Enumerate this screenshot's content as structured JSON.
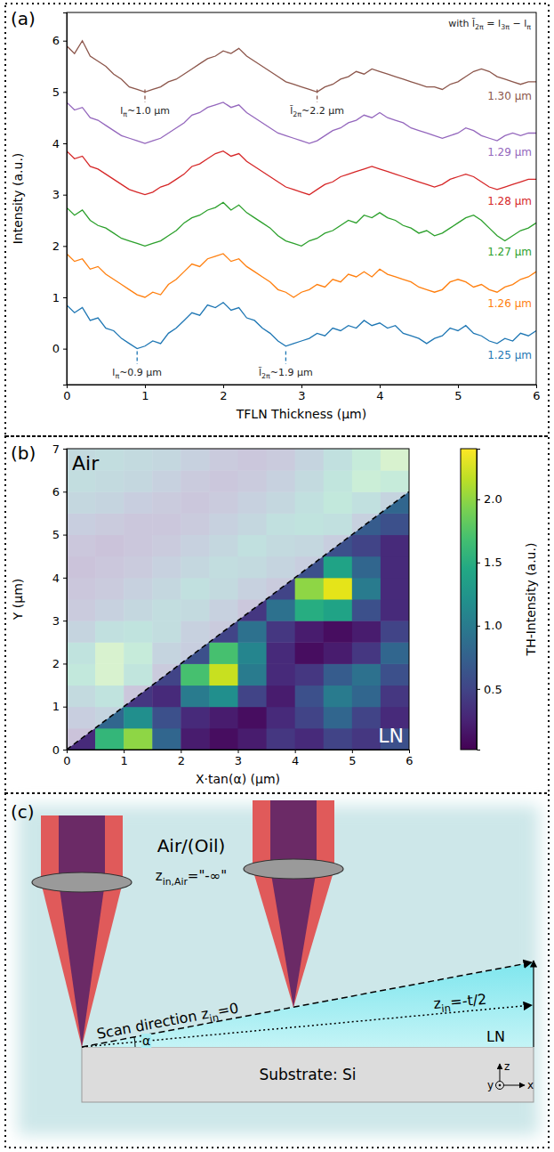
{
  "chart_data": [
    {
      "type": "line",
      "panel_label": "(a)",
      "x": [
        0,
        0.1,
        0.2,
        0.3,
        0.4,
        0.5,
        0.6,
        0.7,
        0.8,
        0.9,
        1,
        1.1,
        1.2,
        1.3,
        1.4,
        1.5,
        1.6,
        1.7,
        1.8,
        1.9,
        2,
        2.1,
        2.2,
        2.3,
        2.4,
        2.5,
        2.6,
        2.7,
        2.8,
        2.9,
        3,
        3.1,
        3.2,
        3.3,
        3.4,
        3.5,
        3.6,
        3.7,
        3.8,
        3.9,
        4,
        4.1,
        4.2,
        4.3,
        4.4,
        4.5,
        4.6,
        4.7,
        4.8,
        4.9,
        5,
        5.1,
        5.2,
        5.3,
        5.4,
        5.5,
        5.6,
        5.7,
        5.8,
        5.9,
        6
      ],
      "series": [
        {
          "name": "1.25 µm",
          "color": "#1f77b4",
          "values": [
            0.85,
            0.7,
            0.8,
            0.55,
            0.6,
            0.4,
            0.35,
            0.2,
            0.1,
            0,
            0.05,
            0.15,
            0.1,
            0.3,
            0.4,
            0.55,
            0.7,
            0.65,
            0.85,
            0.8,
            0.9,
            0.75,
            0.8,
            0.6,
            0.55,
            0.4,
            0.3,
            0.15,
            0.05,
            0.1,
            0.15,
            0.2,
            0.3,
            0.25,
            0.4,
            0.35,
            0.45,
            0.4,
            0.55,
            0.45,
            0.5,
            0.4,
            0.45,
            0.3,
            0.25,
            0.2,
            0.1,
            0.2,
            0.25,
            0.4,
            0.35,
            0.45,
            0.3,
            0.25,
            0.15,
            0.1,
            0.2,
            0.15,
            0.3,
            0.25,
            0.35
          ]
        },
        {
          "name": "1.26 µm",
          "color": "#ff7f0e",
          "values": [
            1.85,
            1.7,
            1.75,
            1.55,
            1.6,
            1.45,
            1.35,
            1.25,
            1.15,
            1.05,
            1,
            1.1,
            1.05,
            1.25,
            1.35,
            1.5,
            1.65,
            1.6,
            1.75,
            1.8,
            1.85,
            1.7,
            1.75,
            1.6,
            1.5,
            1.4,
            1.3,
            1.15,
            1.1,
            1,
            1.1,
            1.15,
            1.25,
            1.2,
            1.35,
            1.3,
            1.45,
            1.4,
            1.5,
            1.4,
            1.55,
            1.45,
            1.4,
            1.35,
            1.3,
            1.2,
            1.15,
            1.1,
            1.15,
            1.3,
            1.35,
            1.3,
            1.2,
            1.25,
            1.15,
            1.1,
            1.2,
            1.25,
            1.35,
            1.4,
            1.5
          ]
        },
        {
          "name": "1.27 µm",
          "color": "#2ca02c",
          "values": [
            2.75,
            2.6,
            2.7,
            2.5,
            2.4,
            2.35,
            2.25,
            2.15,
            2.1,
            2.05,
            2,
            2.05,
            2.1,
            2.2,
            2.3,
            2.45,
            2.55,
            2.6,
            2.7,
            2.75,
            2.85,
            2.7,
            2.8,
            2.65,
            2.55,
            2.45,
            2.35,
            2.2,
            2.1,
            2.05,
            2,
            2.1,
            2.15,
            2.25,
            2.3,
            2.4,
            2.5,
            2.45,
            2.6,
            2.55,
            2.65,
            2.55,
            2.5,
            2.4,
            2.35,
            2.25,
            2.3,
            2.2,
            2.25,
            2.35,
            2.45,
            2.55,
            2.6,
            2.5,
            2.35,
            2.2,
            2.1,
            2.2,
            2.3,
            2.35,
            2.45
          ]
        },
        {
          "name": "1.28 µm",
          "color": "#d62728",
          "values": [
            3.85,
            3.7,
            3.75,
            3.55,
            3.5,
            3.4,
            3.3,
            3.2,
            3.1,
            3.05,
            3,
            3.05,
            3.15,
            3.2,
            3.3,
            3.4,
            3.55,
            3.6,
            3.7,
            3.8,
            3.85,
            3.75,
            3.8,
            3.65,
            3.55,
            3.45,
            3.35,
            3.25,
            3.15,
            3.1,
            3.05,
            3,
            3.1,
            3.2,
            3.25,
            3.35,
            3.4,
            3.45,
            3.5,
            3.55,
            3.5,
            3.45,
            3.4,
            3.35,
            3.3,
            3.25,
            3.2,
            3.15,
            3.2,
            3.3,
            3.35,
            3.4,
            3.35,
            3.25,
            3.15,
            3.1,
            3.15,
            3.2,
            3.25,
            3.3,
            3.3
          ]
        },
        {
          "name": "1.29 µm",
          "color": "#9467bd",
          "values": [
            4.8,
            4.65,
            4.7,
            4.5,
            4.45,
            4.35,
            4.25,
            4.15,
            4.1,
            4.05,
            4,
            4.05,
            4.1,
            4.2,
            4.3,
            4.4,
            4.55,
            4.6,
            4.7,
            4.75,
            4.8,
            4.7,
            4.75,
            4.6,
            4.5,
            4.4,
            4.3,
            4.2,
            4.15,
            4.1,
            4.05,
            4,
            4.05,
            4.15,
            4.25,
            4.3,
            4.4,
            4.45,
            4.55,
            4.5,
            4.6,
            4.5,
            4.45,
            4.4,
            4.3,
            4.25,
            4.2,
            4.15,
            4.1,
            4.15,
            4.2,
            4.3,
            4.25,
            4.15,
            4.1,
            4.05,
            4.15,
            4.2,
            4.15,
            4.2,
            4.2
          ]
        },
        {
          "name": "1.30 µm",
          "color": "#8c564b",
          "values": [
            5.9,
            5.75,
            6,
            5.7,
            5.6,
            5.5,
            5.35,
            5.25,
            5.1,
            5.05,
            5,
            5.05,
            5.1,
            5.2,
            5.25,
            5.35,
            5.45,
            5.55,
            5.65,
            5.7,
            5.8,
            5.75,
            5.85,
            5.7,
            5.6,
            5.5,
            5.4,
            5.3,
            5.2,
            5.15,
            5.1,
            5.05,
            5,
            5.1,
            5.15,
            5.25,
            5.3,
            5.4,
            5.35,
            5.45,
            5.4,
            5.35,
            5.3,
            5.25,
            5.2,
            5.15,
            5.1,
            5.1,
            5.05,
            5.15,
            5.2,
            5.3,
            5.4,
            5.45,
            5.4,
            5.3,
            5.25,
            5.2,
            5.15,
            5.2,
            5.2
          ]
        }
      ],
      "xlim": [
        0,
        6
      ],
      "ylim": [
        -0.7,
        6.55
      ],
      "xticks": [
        0,
        1,
        2,
        3,
        4,
        5,
        6
      ],
      "yticks": [
        0,
        1,
        2,
        3,
        4,
        5,
        6
      ],
      "x_label": "TFLN Thickness (µm)",
      "y_label": "Intensity (a.u.)",
      "annotations": [
        {
          "x": 1.0,
          "y": [
            5.05,
            4.8
          ],
          "color": "#8c564b",
          "parts": [
            {
              "text": "l",
              "sub": "π"
            },
            {
              "text": "~1.0 µm"
            }
          ]
        },
        {
          "x": 3.2,
          "y": [
            5.05,
            4.8
          ],
          "color": "#8c564b",
          "parts": [
            {
              "text": "l̃",
              "sub": "2π"
            },
            {
              "text": "~2.2 µm"
            }
          ]
        },
        {
          "x": 0.9,
          "y": [
            -0.05,
            -0.3
          ],
          "color": "#1f77b4",
          "parts": [
            {
              "text": "l",
              "sub": "π"
            },
            {
              "text": "~0.9 µm"
            }
          ]
        },
        {
          "x": 2.8,
          "y": [
            -0.05,
            -0.3
          ],
          "color": "#1f77b4",
          "parts": [
            {
              "text": "l̃",
              "sub": "2π"
            },
            {
              "text": "~1.9 µm"
            }
          ]
        }
      ],
      "equation": [
        {
          "text": "with l̃",
          "sub": "2π"
        },
        {
          "text": " = l",
          "sub": "3π"
        },
        {
          "text": " − l",
          "sub": "π"
        }
      ]
    },
    {
      "type": "heatmap",
      "panel_label": "(b)",
      "x_bins": [
        0,
        0.5,
        1,
        1.5,
        2,
        2.5,
        3,
        3.5,
        4,
        4.5,
        5,
        5.5,
        6
      ],
      "y_bins": [
        0,
        0.5,
        1,
        1.5,
        2,
        2.5,
        3,
        3.5,
        4,
        4.5,
        5,
        5.5,
        6,
        6.5,
        7
      ],
      "values": [
        [
          0.3,
          1.6,
          2.0,
          0.8,
          0.2,
          0.1,
          0.2,
          0.4,
          0.3,
          0.5,
          0.4,
          0.6
        ],
        [
          0.6,
          0.8,
          1.2,
          0.6,
          0.3,
          0.2,
          0.1,
          0.3,
          0.5,
          0.8,
          0.5,
          0.3
        ],
        [
          1.0,
          1.3,
          0.4,
          0.3,
          1.0,
          1.2,
          0.5,
          0.2,
          0.6,
          1.0,
          0.8,
          0.4
        ],
        [
          1.5,
          1.9,
          1.4,
          0.5,
          1.7,
          2.2,
          1.0,
          0.3,
          0.4,
          0.7,
          0.9,
          0.6
        ],
        [
          1.3,
          1.9,
          1.6,
          0.8,
          0.6,
          1.7,
          1.1,
          0.3,
          0.1,
          0.2,
          0.4,
          0.8
        ],
        [
          0.8,
          1.2,
          1.3,
          1.1,
          0.7,
          0.5,
          0.9,
          0.4,
          0.2,
          0.1,
          0.2,
          0.5
        ],
        [
          0.5,
          0.7,
          0.9,
          1.1,
          1.0,
          0.7,
          0.4,
          0.9,
          1.5,
          1.4,
          0.6,
          0.3
        ],
        [
          0.4,
          0.5,
          0.7,
          0.9,
          1.2,
          1.0,
          0.7,
          0.5,
          2.0,
          2.3,
          1.0,
          0.3
        ],
        [
          0.3,
          0.4,
          0.5,
          0.7,
          0.9,
          1.1,
          1.0,
          0.8,
          0.6,
          1.4,
          0.8,
          0.3
        ],
        [
          0.4,
          0.3,
          0.4,
          0.5,
          0.7,
          0.9,
          1.2,
          1.0,
          0.9,
          0.6,
          0.5,
          0.3
        ],
        [
          0.6,
          0.5,
          0.4,
          0.4,
          0.5,
          0.7,
          0.9,
          1.2,
          1.3,
          1.2,
          0.7,
          0.6
        ],
        [
          0.9,
          0.8,
          0.6,
          0.5,
          0.4,
          0.5,
          0.7,
          0.9,
          1.2,
          1.5,
          1.2,
          0.8
        ],
        [
          1.1,
          1.0,
          0.9,
          0.7,
          0.5,
          0.4,
          0.5,
          0.7,
          1.0,
          1.4,
          1.7,
          1.6
        ],
        [
          1.0,
          1.1,
          1.0,
          0.9,
          0.7,
          0.5,
          0.4,
          0.5,
          0.8,
          1.2,
          1.6,
          1.9
        ]
      ],
      "xlim": [
        0,
        6
      ],
      "ylim": [
        0,
        7
      ],
      "xticks": [
        0,
        1,
        2,
        3,
        4,
        5,
        6
      ],
      "yticks": [
        0,
        1,
        2,
        3,
        4,
        5,
        6,
        7
      ],
      "x_label": "X·tan(α) (µm)",
      "y_label": "Y (µm)",
      "color": "viridis",
      "colorbar": {
        "lim": [
          0.02,
          2.4
        ],
        "ticks": [
          0.5,
          {
            "value": 1,
            "label": "1.0"
          },
          1.5,
          {
            "value": 2,
            "label": "2.0"
          }
        ],
        "label": "TH-Intensity (a.u.)"
      },
      "regions": {
        "upper": "Air",
        "lower": "LN"
      }
    }
  ],
  "diagram": {
    "panel_label": "(c)",
    "medium": "Air/(Oil)",
    "medium_z": [
      {
        "text": "z",
        "sub": "in,Air"
      },
      {
        "text": "=\"-∞\""
      }
    ],
    "scan_direction": [
      {
        "text": "Scan direction z",
        "sub": "in"
      },
      {
        "text": "=0"
      }
    ],
    "mid_plane": [
      {
        "text": "z",
        "sub": "in"
      },
      {
        "text": "=-t/2"
      }
    ],
    "angle": "α",
    "film": "LN",
    "substrate": "Substrate: Si",
    "axes": {
      "x": "x",
      "y": "y",
      "z": "z"
    }
  }
}
